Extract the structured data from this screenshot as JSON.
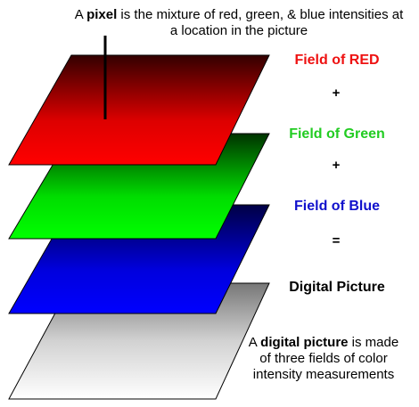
{
  "caption_top": {
    "prefix": "A ",
    "bold": "pixel",
    "suffix": " is the mixture of red, green, & blue intensities at",
    "line2": "a location in the picture"
  },
  "labels": {
    "red": "Field of RED",
    "plus1": "+",
    "green": "Field of Green",
    "plus2": "+",
    "blue": "Field of Blue",
    "equals": "=",
    "digital": "Digital Picture"
  },
  "caption_bottom": {
    "prefix": "A ",
    "bold": "digital picture",
    "suffix": " is made",
    "line2": "of three fields of color",
    "line3": "intensity measurements"
  },
  "colors": {
    "red_label": "#ee1111",
    "green_label": "#22cc22",
    "blue_label": "#1111cc",
    "black_label": "#000000"
  }
}
